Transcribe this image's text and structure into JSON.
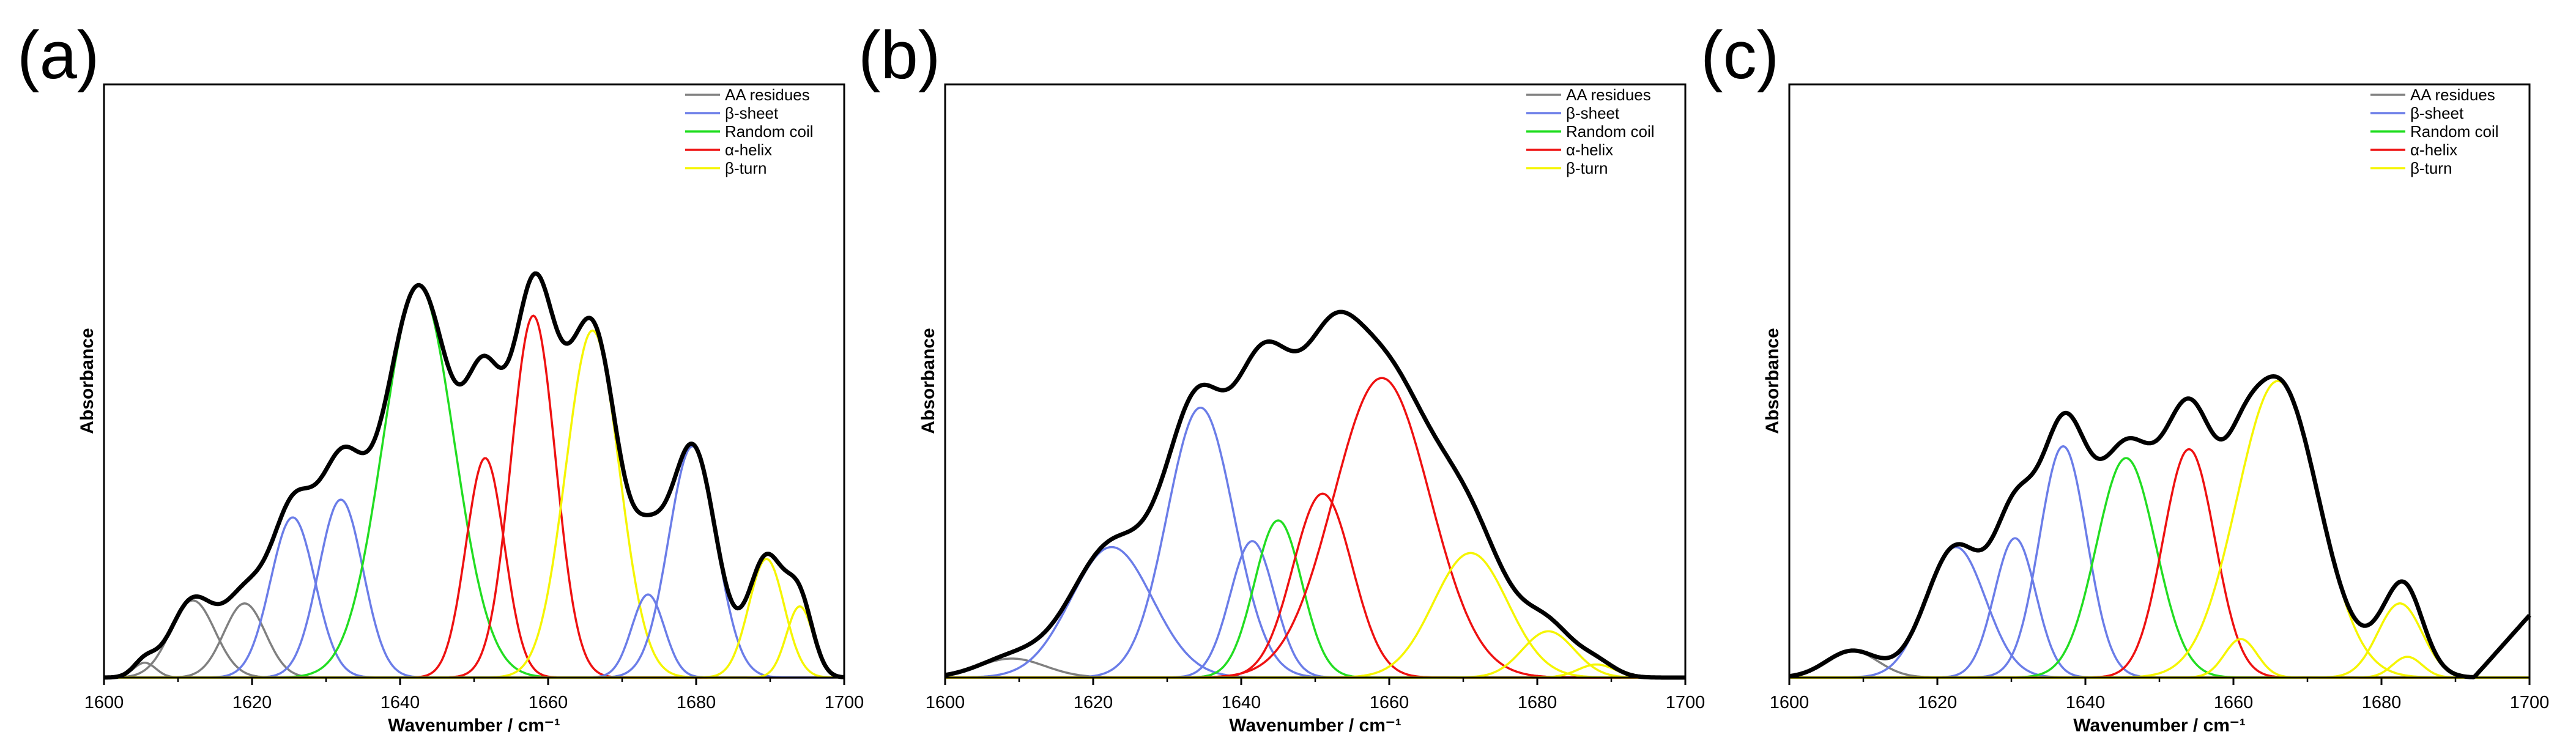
{
  "colors": {
    "envelope": "#000000",
    "AA residues": "#808080",
    "β-sheet": "#6b7de8",
    "Random coil": "#22dd22",
    "α-helix": "#ee1111",
    "β-turn": "#f5f500"
  },
  "chart_data": [
    {
      "type": "line",
      "label": "(a)",
      "xlabel": "Wavenumber / cm⁻¹",
      "ylabel": "Absorbance",
      "xlim": [
        1600,
        1700
      ],
      "ylim": [
        0,
        1.0
      ],
      "xticks": [
        1600,
        1620,
        1640,
        1660,
        1680,
        1700
      ],
      "legend": [
        "AA residues",
        "β-sheet",
        "Random coil",
        "α-helix",
        "β-turn"
      ],
      "legend_position": "top-right",
      "components": [
        {
          "class": "AA residues",
          "center": 1605.5,
          "height": 0.025,
          "width": 1.5
        },
        {
          "class": "AA residues",
          "center": 1612,
          "height": 0.13,
          "width": 3.0
        },
        {
          "class": "AA residues",
          "center": 1619,
          "height": 0.125,
          "width": 2.8
        },
        {
          "class": "β-sheet",
          "center": 1625.5,
          "height": 0.27,
          "width": 3.0
        },
        {
          "class": "β-sheet",
          "center": 1632,
          "height": 0.3,
          "width": 3.0
        },
        {
          "class": "Random coil",
          "center": 1642.5,
          "height": 0.66,
          "width": 4.8
        },
        {
          "class": "α-helix",
          "center": 1651.5,
          "height": 0.37,
          "width": 2.6
        },
        {
          "class": "α-helix",
          "center": 1658,
          "height": 0.61,
          "width": 3.0
        },
        {
          "class": "β-turn",
          "center": 1666,
          "height": 0.585,
          "width": 3.6
        },
        {
          "class": "β-sheet",
          "center": 1673.5,
          "height": 0.14,
          "width": 2.2
        },
        {
          "class": "β-sheet",
          "center": 1679.5,
          "height": 0.39,
          "width": 3.2
        },
        {
          "class": "β-turn",
          "center": 1689.5,
          "height": 0.2,
          "width": 2.4
        },
        {
          "class": "β-turn",
          "center": 1694,
          "height": 0.12,
          "width": 1.8
        }
      ]
    },
    {
      "type": "line",
      "label": "(b)",
      "xlabel": "Wavenumber / cm⁻¹",
      "ylabel": "Absorbance",
      "xlim": [
        1600,
        1700
      ],
      "ylim": [
        0,
        1.0
      ],
      "xticks": [
        1600,
        1620,
        1640,
        1660,
        1680,
        1700
      ],
      "legend": [
        "AA residues",
        "β-sheet",
        "Random coil",
        "α-helix",
        "β-turn"
      ],
      "legend_position": "top-right",
      "components": [
        {
          "class": "AA residues",
          "center": 1609,
          "height": 0.032,
          "width": 4.5
        },
        {
          "class": "β-sheet",
          "center": 1622.5,
          "height": 0.22,
          "width": 5.5
        },
        {
          "class": "β-sheet",
          "center": 1634.5,
          "height": 0.455,
          "width": 4.5
        },
        {
          "class": "β-sheet",
          "center": 1641.5,
          "height": 0.23,
          "width": 3.0
        },
        {
          "class": "Random coil",
          "center": 1645,
          "height": 0.265,
          "width": 3.2
        },
        {
          "class": "α-helix",
          "center": 1651,
          "height": 0.31,
          "width": 4.0
        },
        {
          "class": "α-helix",
          "center": 1659,
          "height": 0.505,
          "width": 6.5
        },
        {
          "class": "β-turn",
          "center": 1671,
          "height": 0.21,
          "width": 5.0
        },
        {
          "class": "β-turn",
          "center": 1681.5,
          "height": 0.078,
          "width": 3.5
        },
        {
          "class": "β-turn",
          "center": 1688,
          "height": 0.022,
          "width": 2.5
        }
      ]
    },
    {
      "type": "line",
      "label": "(c)",
      "xlabel": "Wavenumber / cm⁻¹",
      "ylabel": "Absorbance",
      "xlim": [
        1600,
        1700
      ],
      "ylim": [
        0,
        1.0
      ],
      "xticks": [
        1600,
        1620,
        1640,
        1660,
        1680,
        1700
      ],
      "legend": [
        "AA residues",
        "β-sheet",
        "Random coil",
        "α-helix",
        "β-turn"
      ],
      "legend_position": "top-right",
      "components": [
        {
          "class": "AA residues",
          "center": 1608.5,
          "height": 0.045,
          "width": 3.5
        },
        {
          "class": "β-sheet",
          "center": 1622.5,
          "height": 0.22,
          "width": 4.0
        },
        {
          "class": "β-sheet",
          "center": 1630.5,
          "height": 0.235,
          "width": 2.8
        },
        {
          "class": "β-sheet",
          "center": 1637,
          "height": 0.39,
          "width": 3.2
        },
        {
          "class": "Random coil",
          "center": 1645.5,
          "height": 0.37,
          "width": 4.0
        },
        {
          "class": "α-helix",
          "center": 1654,
          "height": 0.385,
          "width": 3.5
        },
        {
          "class": "β-turn",
          "center": 1661,
          "height": 0.065,
          "width": 2.2
        },
        {
          "class": "β-turn",
          "center": 1666,
          "height": 0.5,
          "width": 5.5
        },
        {
          "class": "β-turn",
          "center": 1682.5,
          "height": 0.125,
          "width": 3.0
        },
        {
          "class": "β-turn",
          "center": 1683.5,
          "height": 0.035,
          "width": 2.0
        }
      ],
      "baseline_rise": {
        "start": 1692.5,
        "end_value": 0.105
      }
    }
  ]
}
